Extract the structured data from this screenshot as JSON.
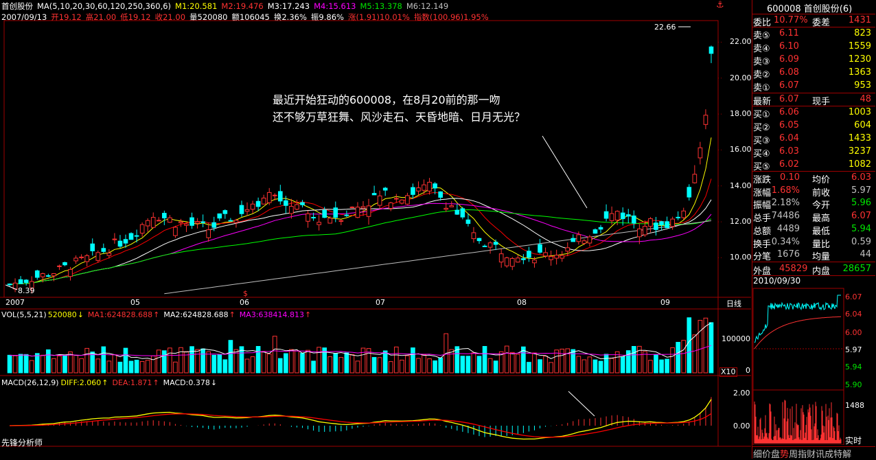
{
  "header": {
    "stock_name": "首创股份",
    "ma_label": "MA(5,10,20,30,60,120,250,360,6)",
    "m1": "M1:20.581",
    "m2": "M2:19.476",
    "m3": "M3:17.243",
    "m4": "M4:15.613",
    "m5": "M5:13.378",
    "m6": "M6:12.149",
    "date": "2007/09/13",
    "open": "开19.12",
    "high": "高21.00",
    "low": "低19.12",
    "close": "收21.00",
    "volume": "量520080",
    "amount": "额106045",
    "turnover": "换2.36%",
    "amplitude": "振9.86%",
    "change": "涨(1.91)10.01%",
    "index": "指数(100.96)1.95%"
  },
  "annotation": {
    "line1": "最近开始狂动的600008，在8月20前的那一吻",
    "line2": "还不够万草狂舞、风沙走石、天昏地暗、日月无光？"
  },
  "price_chart": {
    "high_label": "22.66",
    "low_label": "8.39",
    "y_ticks": [
      "22.00",
      "20.00",
      "18.00",
      "16.00",
      "14.00",
      "12.00",
      "10.00"
    ],
    "x_labels": [
      "2007",
      "05",
      "06",
      "07",
      "08",
      "09"
    ],
    "period_label": "日线",
    "marker": "$"
  },
  "volume_panel": {
    "label": "VOL(5,5,21)",
    "vol": "520080",
    "ma1": "MA1:624828.688",
    "ma2": "MA2:624828.688",
    "ma3": "MA3:638414.813",
    "y_tick": "100000",
    "y_zero": "0",
    "unit": "X10"
  },
  "macd_panel": {
    "label": "MACD(26,12,9)",
    "diff": "DIFF:2.060",
    "dea": "DEA:1.871",
    "macd": "MACD:0.378",
    "y_ticks": [
      "2.00",
      "0.00"
    ]
  },
  "footer_left": "先锋分析师",
  "quote": {
    "title": "600008 首创股份(6)",
    "webi_label": "委比",
    "webi_value": "10.77%",
    "weicha_label": "委差",
    "weicha_value": "1431",
    "sells": [
      {
        "label": "卖⑤",
        "price": "6.11",
        "vol": "823"
      },
      {
        "label": "卖④",
        "price": "6.10",
        "vol": "1559"
      },
      {
        "label": "卖③",
        "price": "6.09",
        "vol": "1230"
      },
      {
        "label": "卖②",
        "price": "6.08",
        "vol": "1363"
      },
      {
        "label": "卖①",
        "price": "6.07",
        "vol": "953"
      }
    ],
    "latest_label": "最新",
    "latest_value": "6.07",
    "xianshou_label": "现手",
    "xianshou_value": "48",
    "buys": [
      {
        "label": "买①",
        "price": "6.06",
        "vol": "1003"
      },
      {
        "label": "买②",
        "price": "6.05",
        "vol": "604"
      },
      {
        "label": "买③",
        "price": "6.04",
        "vol": "1433"
      },
      {
        "label": "买④",
        "price": "6.03",
        "vol": "3237"
      },
      {
        "label": "买⑤",
        "price": "6.02",
        "vol": "1082"
      }
    ],
    "stats": [
      {
        "l1": "涨跌",
        "v1": "0.10",
        "c1": "red",
        "l2": "均价",
        "v2": "6.03",
        "c2": "red"
      },
      {
        "l1": "涨幅",
        "v1": "1.68%",
        "c1": "red",
        "l2": "前收",
        "v2": "5.97",
        "c2": "gray"
      },
      {
        "l1": "振幅",
        "v1": "2.18%",
        "c1": "gray",
        "l2": "今开",
        "v2": "5.96",
        "c2": "green"
      },
      {
        "l1": "总手",
        "v1": "74486",
        "c1": "gray",
        "l2": "最高",
        "v2": "6.07",
        "c2": "red"
      },
      {
        "l1": "总额",
        "v1": "4489",
        "c1": "gray",
        "l2": "最低",
        "v2": "5.94",
        "c2": "green"
      },
      {
        "l1": "换手",
        "v1": "0.34%",
        "c1": "gray",
        "l2": "量比",
        "v2": "0.59",
        "c2": "gray"
      },
      {
        "l1": "分笔",
        "v1": "1676",
        "c1": "gray",
        "l2": "均量",
        "v2": "44",
        "c2": "gray"
      }
    ],
    "waipan_label": "外盘",
    "waipan_value": "45829",
    "neipan_label": "内盘",
    "neipan_value": "28657",
    "mini_date": "2010/09/30",
    "mini_prices": [
      "6.07",
      "6.04",
      "6.00",
      "5.97",
      "5.94",
      "5.90"
    ],
    "mini_vol": "1488",
    "realtime": "实时"
  },
  "bottom_tabs": [
    "细",
    "价",
    "盘",
    "势",
    "周",
    "指",
    "财",
    "讯",
    "成",
    "特",
    "解"
  ],
  "colors": {
    "up": "#ff3232",
    "down": "#00ffff",
    "ma1": "#ffff00",
    "ma2": "#ff0000",
    "ma3": "#ffffff",
    "ma4": "#ff00ff",
    "ma5": "#00ff00",
    "ma6": "#c0c0c0",
    "border": "#a00000"
  }
}
